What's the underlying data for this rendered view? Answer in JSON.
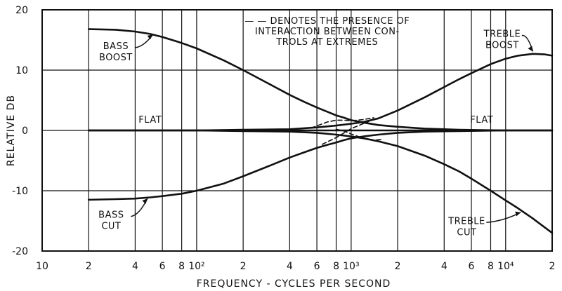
{
  "chart_data": {
    "type": "line",
    "title": "",
    "xlabel": "FREQUENCY - CYCLES PER SECOND",
    "ylabel": "RELATIVE DB",
    "xscale": "log",
    "xlim": [
      10,
      20000
    ],
    "ylim": [
      -20,
      20
    ],
    "grid": true,
    "y_ticks": [
      {
        "value": 20,
        "label": "20"
      },
      {
        "value": 10,
        "label": "10"
      },
      {
        "value": 0,
        "label": "0"
      },
      {
        "value": -10,
        "label": "-10"
      },
      {
        "value": -20,
        "label": "-20"
      }
    ],
    "x_ticks": [
      {
        "value": 10,
        "label": "10"
      },
      {
        "value": 20,
        "label": "2"
      },
      {
        "value": 40,
        "label": "4"
      },
      {
        "value": 60,
        "label": "6"
      },
      {
        "value": 80,
        "label": "8"
      },
      {
        "value": 100,
        "label": "10²"
      },
      {
        "value": 200,
        "label": "2"
      },
      {
        "value": 400,
        "label": "4"
      },
      {
        "value": 600,
        "label": "6"
      },
      {
        "value": 800,
        "label": "8"
      },
      {
        "value": 1000,
        "label": "10³"
      },
      {
        "value": 2000,
        "label": "2"
      },
      {
        "value": 4000,
        "label": "4"
      },
      {
        "value": 6000,
        "label": "6"
      },
      {
        "value": 8000,
        "label": "8"
      },
      {
        "value": 10000,
        "label": "10⁴"
      },
      {
        "value": 20000,
        "label": "2"
      }
    ],
    "annotation": [
      "— — DENOTES THE PRESENCE OF",
      "INTERACTION BETWEEN CON-",
      "TROLS AT EXTREMES"
    ],
    "series": [
      {
        "name": "BASS BOOST",
        "style": "solid",
        "x": [
          20,
          30,
          40,
          50,
          60,
          80,
          100,
          150,
          200,
          300,
          400,
          500,
          600,
          700,
          800,
          900,
          1000,
          1200,
          1500,
          2000,
          3000,
          5000,
          10000,
          20000
        ],
        "y": [
          16.8,
          16.7,
          16.4,
          16.0,
          15.5,
          14.5,
          13.6,
          11.6,
          10.0,
          7.6,
          5.9,
          4.7,
          3.8,
          3.1,
          2.5,
          2.1,
          1.7,
          1.3,
          0.9,
          0.6,
          0.3,
          0.1,
          0.0,
          0.0
        ]
      },
      {
        "name": "BASS CUT",
        "style": "solid",
        "x": [
          20,
          30,
          40,
          50,
          60,
          80,
          100,
          150,
          200,
          300,
          400,
          500,
          600,
          700,
          800,
          900,
          1000,
          1200,
          1500,
          2000,
          3000,
          5000,
          10000,
          20000
        ],
        "y": [
          -11.5,
          -11.4,
          -11.3,
          -11.1,
          -10.9,
          -10.5,
          -10.0,
          -8.8,
          -7.6,
          -5.8,
          -4.5,
          -3.6,
          -2.9,
          -2.4,
          -2.0,
          -1.6,
          -1.3,
          -1.0,
          -0.7,
          -0.4,
          -0.2,
          -0.1,
          0.0,
          0.0
        ]
      },
      {
        "name": "TREBLE BOOST",
        "style": "solid",
        "x": [
          20,
          100,
          200,
          400,
          600,
          800,
          1000,
          1200,
          1500,
          2000,
          3000,
          4000,
          5000,
          6000,
          8000,
          10000,
          12000,
          15000,
          18000,
          20000
        ],
        "y": [
          0.0,
          0.0,
          0.1,
          0.2,
          0.5,
          0.8,
          1.1,
          1.4,
          2.0,
          3.3,
          5.5,
          7.2,
          8.5,
          9.5,
          11.0,
          11.9,
          12.4,
          12.7,
          12.6,
          12.4
        ]
      },
      {
        "name": "TREBLE CUT",
        "style": "solid",
        "x": [
          20,
          100,
          200,
          400,
          600,
          800,
          1000,
          1200,
          1500,
          2000,
          3000,
          4000,
          5000,
          6000,
          8000,
          10000,
          12000,
          15000,
          20000
        ],
        "y": [
          0.0,
          0.0,
          -0.1,
          -0.2,
          -0.4,
          -0.7,
          -1.0,
          -1.3,
          -1.8,
          -2.6,
          -4.2,
          -5.6,
          -6.8,
          -8.0,
          -10.0,
          -11.6,
          -12.9,
          -14.6,
          -17.0
        ]
      },
      {
        "name": "FLAT",
        "style": "solid",
        "x": [
          20,
          20000
        ],
        "y": [
          0.0,
          0.0
        ]
      },
      {
        "name": "",
        "style": "dashed",
        "x": [
          550,
          700,
          800,
          900,
          1000,
          1200,
          1400
        ],
        "y": [
          0.4,
          1.4,
          1.7,
          1.7,
          1.6,
          1.8,
          2.1
        ]
      },
      {
        "name": "",
        "style": "dashed",
        "x": [
          800,
          900,
          1000,
          1200,
          1400,
          1600
        ],
        "y": [
          0.2,
          -0.1,
          -0.6,
          -1.3,
          -1.6,
          -1.5
        ]
      },
      {
        "name": "",
        "style": "dashed",
        "x": [
          650,
          800,
          1000,
          1300
        ],
        "y": [
          -2.3,
          -1.2,
          0.3,
          1.5
        ]
      }
    ],
    "curve_labels": [
      {
        "name": "bass-boost-label",
        "lines": [
          "BASS",
          "BOOST"
        ],
        "x": 30,
        "y": 13.5,
        "anchor": "middle",
        "arrow_to": {
          "x": 52,
          "y": 15.9
        }
      },
      {
        "name": "bass-cut-label",
        "lines": [
          "BASS",
          "CUT"
        ],
        "x": 28,
        "y": -14.5,
        "anchor": "middle",
        "arrow_to": {
          "x": 48,
          "y": -11.3
        }
      },
      {
        "name": "treble-boost-label",
        "lines": [
          "TREBLE",
          "BOOST"
        ],
        "x": 9500,
        "y": 15.5,
        "anchor": "middle",
        "arrow_to": {
          "x": 15000,
          "y": 13.1
        }
      },
      {
        "name": "treble-cut-label",
        "lines": [
          "TREBLE",
          "CUT"
        ],
        "x": 5600,
        "y": -15.5,
        "anchor": "middle",
        "arrow_to": {
          "x": 12500,
          "y": -13.6
        }
      },
      {
        "name": "flat-label-left",
        "lines": [
          "FLAT"
        ],
        "x": 50,
        "y": 1.3,
        "anchor": "middle"
      },
      {
        "name": "flat-label-right",
        "lines": [
          "FLAT"
        ],
        "x": 7000,
        "y": 1.3,
        "anchor": "middle"
      }
    ]
  }
}
